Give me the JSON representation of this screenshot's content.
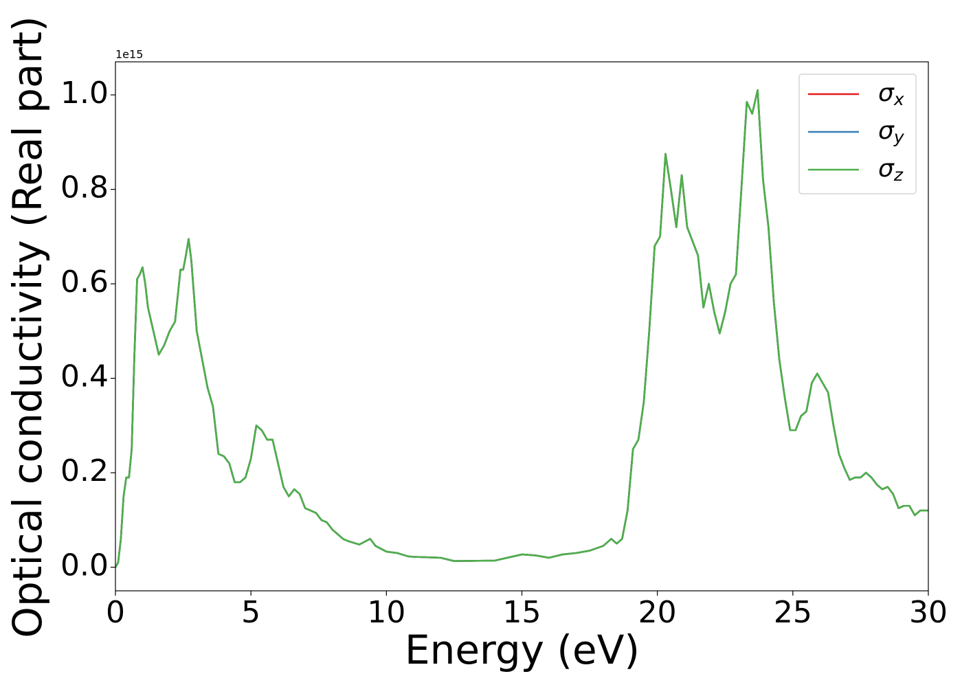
{
  "chart_data": {
    "type": "line",
    "xlabel": "Energy (eV)",
    "ylabel": "Optical conductivity (Real part)",
    "y_offset_label": "1e15",
    "xlim": [
      0,
      30
    ],
    "ylim": [
      -0.05,
      1.07
    ],
    "xticks": [
      0,
      5,
      10,
      15,
      20,
      25,
      30
    ],
    "yticks": [
      {
        "value": 0,
        "label": "0.0"
      },
      0.2,
      0.4,
      0.6,
      0.8,
      {
        "value": 1,
        "label": "1.0"
      }
    ],
    "legend": "upper right",
    "x": [
      0,
      0.1,
      0.2,
      0.3,
      0.4,
      0.5,
      0.6,
      0.7,
      0.8,
      0.9,
      1.0,
      1.1,
      1.2,
      1.4,
      1.6,
      1.8,
      2.0,
      2.2,
      2.4,
      2.5,
      2.6,
      2.7,
      2.8,
      3.0,
      3.2,
      3.4,
      3.6,
      3.8,
      4.0,
      4.2,
      4.4,
      4.6,
      4.8,
      5.0,
      5.2,
      5.4,
      5.6,
      5.8,
      6.0,
      6.2,
      6.4,
      6.6,
      6.8,
      7.0,
      7.4,
      7.6,
      7.8,
      8.0,
      8.4,
      8.6,
      9.0,
      9.4,
      9.6,
      10.0,
      10.4,
      10.8,
      11.0,
      12.0,
      12.5,
      14.0,
      15.0,
      15.5,
      16.0,
      16.5,
      17.0,
      17.5,
      18.0,
      18.3,
      18.5,
      18.7,
      18.9,
      19.1,
      19.3,
      19.5,
      19.7,
      19.9,
      20.1,
      20.3,
      20.5,
      20.7,
      20.9,
      21.1,
      21.3,
      21.5,
      21.7,
      21.9,
      22.1,
      22.3,
      22.5,
      22.7,
      22.9,
      23.1,
      23.3,
      23.5,
      23.7,
      23.9,
      24.1,
      24.3,
      24.5,
      24.7,
      24.9,
      25.1,
      25.3,
      25.5,
      25.7,
      25.9,
      26.1,
      26.3,
      26.5,
      26.7,
      26.9,
      27.1,
      27.3,
      27.5,
      27.7,
      27.9,
      28.1,
      28.3,
      28.5,
      28.7,
      28.9,
      29.1,
      29.3,
      29.5,
      29.7,
      30.0
    ],
    "series": [
      {
        "name": "σx",
        "color": "#e41a1c",
        "values": [
          0.0,
          0.01,
          0.06,
          0.15,
          0.19,
          0.19,
          0.25,
          0.45,
          0.61,
          0.62,
          0.635,
          0.6,
          0.55,
          0.5,
          0.45,
          0.47,
          0.5,
          0.52,
          0.63,
          0.63,
          0.66,
          0.695,
          0.65,
          0.5,
          0.44,
          0.38,
          0.34,
          0.24,
          0.235,
          0.22,
          0.18,
          0.18,
          0.19,
          0.23,
          0.3,
          0.29,
          0.27,
          0.27,
          0.22,
          0.17,
          0.15,
          0.165,
          0.155,
          0.125,
          0.115,
          0.1,
          0.095,
          0.08,
          0.06,
          0.055,
          0.048,
          0.06,
          0.045,
          0.033,
          0.03,
          0.023,
          0.022,
          0.02,
          0.013,
          0.014,
          0.027,
          0.025,
          0.02,
          0.027,
          0.03,
          0.035,
          0.045,
          0.06,
          0.05,
          0.06,
          0.12,
          0.25,
          0.27,
          0.35,
          0.5,
          0.68,
          0.7,
          0.875,
          0.8,
          0.72,
          0.83,
          0.72,
          0.69,
          0.66,
          0.55,
          0.6,
          0.54,
          0.495,
          0.54,
          0.6,
          0.62,
          0.8,
          0.985,
          0.96,
          1.01,
          0.82,
          0.72,
          0.56,
          0.44,
          0.36,
          0.29,
          0.29,
          0.32,
          0.33,
          0.39,
          0.41,
          0.39,
          0.37,
          0.3,
          0.24,
          0.21,
          0.185,
          0.19,
          0.19,
          0.2,
          0.19,
          0.175,
          0.165,
          0.17,
          0.155,
          0.125,
          0.13,
          0.13,
          0.11,
          0.12,
          0.12
        ]
      },
      {
        "name": "σy",
        "color": "#377eb8",
        "values": [
          0.0,
          0.01,
          0.06,
          0.15,
          0.19,
          0.19,
          0.25,
          0.45,
          0.61,
          0.62,
          0.635,
          0.6,
          0.55,
          0.5,
          0.45,
          0.47,
          0.5,
          0.52,
          0.63,
          0.63,
          0.66,
          0.695,
          0.65,
          0.5,
          0.44,
          0.38,
          0.34,
          0.24,
          0.235,
          0.22,
          0.18,
          0.18,
          0.19,
          0.23,
          0.3,
          0.29,
          0.27,
          0.27,
          0.22,
          0.17,
          0.15,
          0.165,
          0.155,
          0.125,
          0.115,
          0.1,
          0.095,
          0.08,
          0.06,
          0.055,
          0.048,
          0.06,
          0.045,
          0.033,
          0.03,
          0.023,
          0.022,
          0.02,
          0.013,
          0.014,
          0.027,
          0.025,
          0.02,
          0.027,
          0.03,
          0.035,
          0.045,
          0.06,
          0.05,
          0.06,
          0.12,
          0.25,
          0.27,
          0.35,
          0.5,
          0.68,
          0.7,
          0.875,
          0.8,
          0.72,
          0.83,
          0.72,
          0.69,
          0.66,
          0.55,
          0.6,
          0.54,
          0.495,
          0.54,
          0.6,
          0.62,
          0.8,
          0.985,
          0.96,
          1.01,
          0.82,
          0.72,
          0.56,
          0.44,
          0.36,
          0.29,
          0.29,
          0.32,
          0.33,
          0.39,
          0.41,
          0.39,
          0.37,
          0.3,
          0.24,
          0.21,
          0.185,
          0.19,
          0.19,
          0.2,
          0.19,
          0.175,
          0.165,
          0.17,
          0.155,
          0.125,
          0.13,
          0.13,
          0.11,
          0.12,
          0.12
        ]
      },
      {
        "name": "σz",
        "color": "#4daf4a",
        "values": [
          0.0,
          0.01,
          0.06,
          0.15,
          0.19,
          0.19,
          0.25,
          0.45,
          0.61,
          0.62,
          0.635,
          0.6,
          0.55,
          0.5,
          0.45,
          0.47,
          0.5,
          0.52,
          0.63,
          0.63,
          0.66,
          0.695,
          0.65,
          0.5,
          0.44,
          0.38,
          0.34,
          0.24,
          0.235,
          0.22,
          0.18,
          0.18,
          0.19,
          0.23,
          0.3,
          0.29,
          0.27,
          0.27,
          0.22,
          0.17,
          0.15,
          0.165,
          0.155,
          0.125,
          0.115,
          0.1,
          0.095,
          0.08,
          0.06,
          0.055,
          0.048,
          0.06,
          0.045,
          0.033,
          0.03,
          0.023,
          0.022,
          0.02,
          0.013,
          0.014,
          0.027,
          0.025,
          0.02,
          0.027,
          0.03,
          0.035,
          0.045,
          0.06,
          0.05,
          0.06,
          0.12,
          0.25,
          0.27,
          0.35,
          0.5,
          0.68,
          0.7,
          0.875,
          0.8,
          0.72,
          0.83,
          0.72,
          0.69,
          0.66,
          0.55,
          0.6,
          0.54,
          0.495,
          0.54,
          0.6,
          0.62,
          0.8,
          0.985,
          0.96,
          1.01,
          0.82,
          0.72,
          0.56,
          0.44,
          0.36,
          0.29,
          0.29,
          0.32,
          0.33,
          0.39,
          0.41,
          0.39,
          0.37,
          0.3,
          0.24,
          0.21,
          0.185,
          0.19,
          0.19,
          0.2,
          0.19,
          0.175,
          0.165,
          0.17,
          0.155,
          0.125,
          0.13,
          0.13,
          0.11,
          0.12,
          0.12
        ]
      }
    ]
  }
}
